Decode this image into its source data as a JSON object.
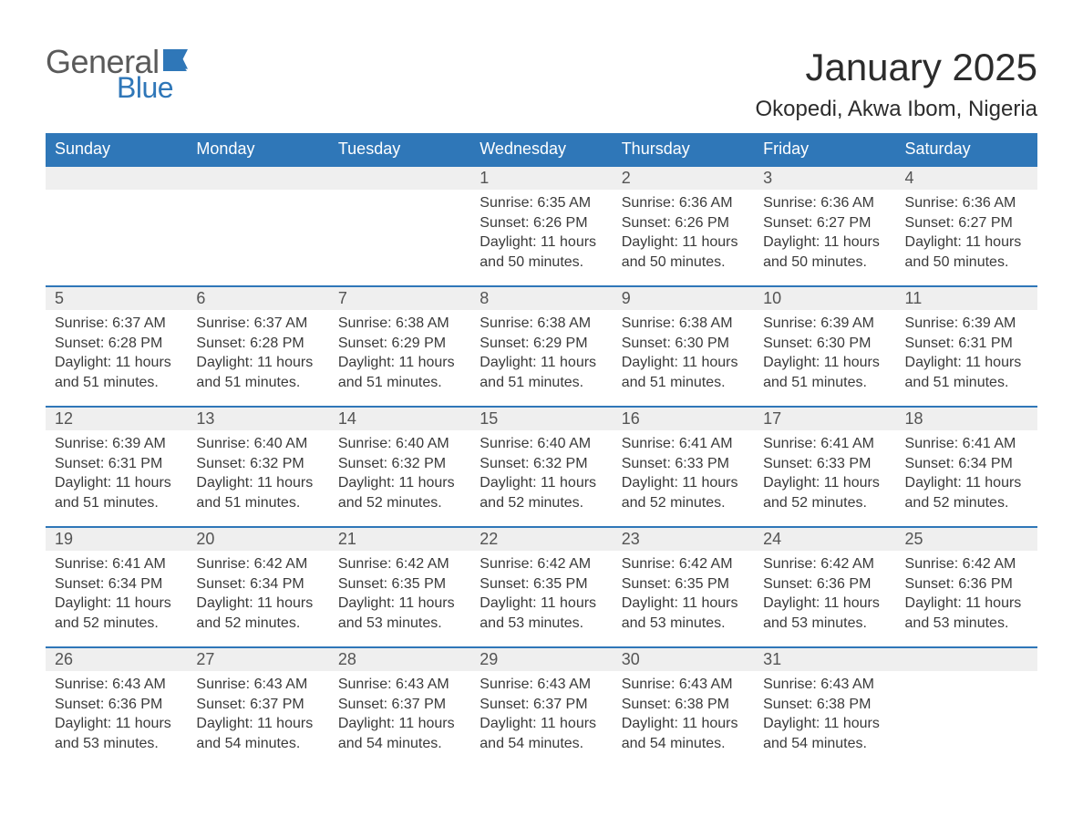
{
  "logo": {
    "line1": "General",
    "line2": "Blue",
    "flag_color": "#2f77b8"
  },
  "title": "January 2025",
  "location": "Okopedi, Akwa Ibom, Nigeria",
  "colors": {
    "header_bg": "#2f77b8",
    "header_text": "#ffffff",
    "daynum_bg": "#efefef",
    "row_border": "#2f77b8",
    "text": "#3a3a3a",
    "page_bg": "#ffffff"
  },
  "weekdays": [
    "Sunday",
    "Monday",
    "Tuesday",
    "Wednesday",
    "Thursday",
    "Friday",
    "Saturday"
  ],
  "weeks": [
    [
      null,
      null,
      null,
      {
        "n": "1",
        "sunrise": "6:35 AM",
        "sunset": "6:26 PM",
        "daylight": "11 hours and 50 minutes."
      },
      {
        "n": "2",
        "sunrise": "6:36 AM",
        "sunset": "6:26 PM",
        "daylight": "11 hours and 50 minutes."
      },
      {
        "n": "3",
        "sunrise": "6:36 AM",
        "sunset": "6:27 PM",
        "daylight": "11 hours and 50 minutes."
      },
      {
        "n": "4",
        "sunrise": "6:36 AM",
        "sunset": "6:27 PM",
        "daylight": "11 hours and 50 minutes."
      }
    ],
    [
      {
        "n": "5",
        "sunrise": "6:37 AM",
        "sunset": "6:28 PM",
        "daylight": "11 hours and 51 minutes."
      },
      {
        "n": "6",
        "sunrise": "6:37 AM",
        "sunset": "6:28 PM",
        "daylight": "11 hours and 51 minutes."
      },
      {
        "n": "7",
        "sunrise": "6:38 AM",
        "sunset": "6:29 PM",
        "daylight": "11 hours and 51 minutes."
      },
      {
        "n": "8",
        "sunrise": "6:38 AM",
        "sunset": "6:29 PM",
        "daylight": "11 hours and 51 minutes."
      },
      {
        "n": "9",
        "sunrise": "6:38 AM",
        "sunset": "6:30 PM",
        "daylight": "11 hours and 51 minutes."
      },
      {
        "n": "10",
        "sunrise": "6:39 AM",
        "sunset": "6:30 PM",
        "daylight": "11 hours and 51 minutes."
      },
      {
        "n": "11",
        "sunrise": "6:39 AM",
        "sunset": "6:31 PM",
        "daylight": "11 hours and 51 minutes."
      }
    ],
    [
      {
        "n": "12",
        "sunrise": "6:39 AM",
        "sunset": "6:31 PM",
        "daylight": "11 hours and 51 minutes."
      },
      {
        "n": "13",
        "sunrise": "6:40 AM",
        "sunset": "6:32 PM",
        "daylight": "11 hours and 51 minutes."
      },
      {
        "n": "14",
        "sunrise": "6:40 AM",
        "sunset": "6:32 PM",
        "daylight": "11 hours and 52 minutes."
      },
      {
        "n": "15",
        "sunrise": "6:40 AM",
        "sunset": "6:32 PM",
        "daylight": "11 hours and 52 minutes."
      },
      {
        "n": "16",
        "sunrise": "6:41 AM",
        "sunset": "6:33 PM",
        "daylight": "11 hours and 52 minutes."
      },
      {
        "n": "17",
        "sunrise": "6:41 AM",
        "sunset": "6:33 PM",
        "daylight": "11 hours and 52 minutes."
      },
      {
        "n": "18",
        "sunrise": "6:41 AM",
        "sunset": "6:34 PM",
        "daylight": "11 hours and 52 minutes."
      }
    ],
    [
      {
        "n": "19",
        "sunrise": "6:41 AM",
        "sunset": "6:34 PM",
        "daylight": "11 hours and 52 minutes."
      },
      {
        "n": "20",
        "sunrise": "6:42 AM",
        "sunset": "6:34 PM",
        "daylight": "11 hours and 52 minutes."
      },
      {
        "n": "21",
        "sunrise": "6:42 AM",
        "sunset": "6:35 PM",
        "daylight": "11 hours and 53 minutes."
      },
      {
        "n": "22",
        "sunrise": "6:42 AM",
        "sunset": "6:35 PM",
        "daylight": "11 hours and 53 minutes."
      },
      {
        "n": "23",
        "sunrise": "6:42 AM",
        "sunset": "6:35 PM",
        "daylight": "11 hours and 53 minutes."
      },
      {
        "n": "24",
        "sunrise": "6:42 AM",
        "sunset": "6:36 PM",
        "daylight": "11 hours and 53 minutes."
      },
      {
        "n": "25",
        "sunrise": "6:42 AM",
        "sunset": "6:36 PM",
        "daylight": "11 hours and 53 minutes."
      }
    ],
    [
      {
        "n": "26",
        "sunrise": "6:43 AM",
        "sunset": "6:36 PM",
        "daylight": "11 hours and 53 minutes."
      },
      {
        "n": "27",
        "sunrise": "6:43 AM",
        "sunset": "6:37 PM",
        "daylight": "11 hours and 54 minutes."
      },
      {
        "n": "28",
        "sunrise": "6:43 AM",
        "sunset": "6:37 PM",
        "daylight": "11 hours and 54 minutes."
      },
      {
        "n": "29",
        "sunrise": "6:43 AM",
        "sunset": "6:37 PM",
        "daylight": "11 hours and 54 minutes."
      },
      {
        "n": "30",
        "sunrise": "6:43 AM",
        "sunset": "6:38 PM",
        "daylight": "11 hours and 54 minutes."
      },
      {
        "n": "31",
        "sunrise": "6:43 AM",
        "sunset": "6:38 PM",
        "daylight": "11 hours and 54 minutes."
      },
      null
    ]
  ],
  "labels": {
    "sunrise": "Sunrise:",
    "sunset": "Sunset:",
    "daylight": "Daylight:"
  }
}
